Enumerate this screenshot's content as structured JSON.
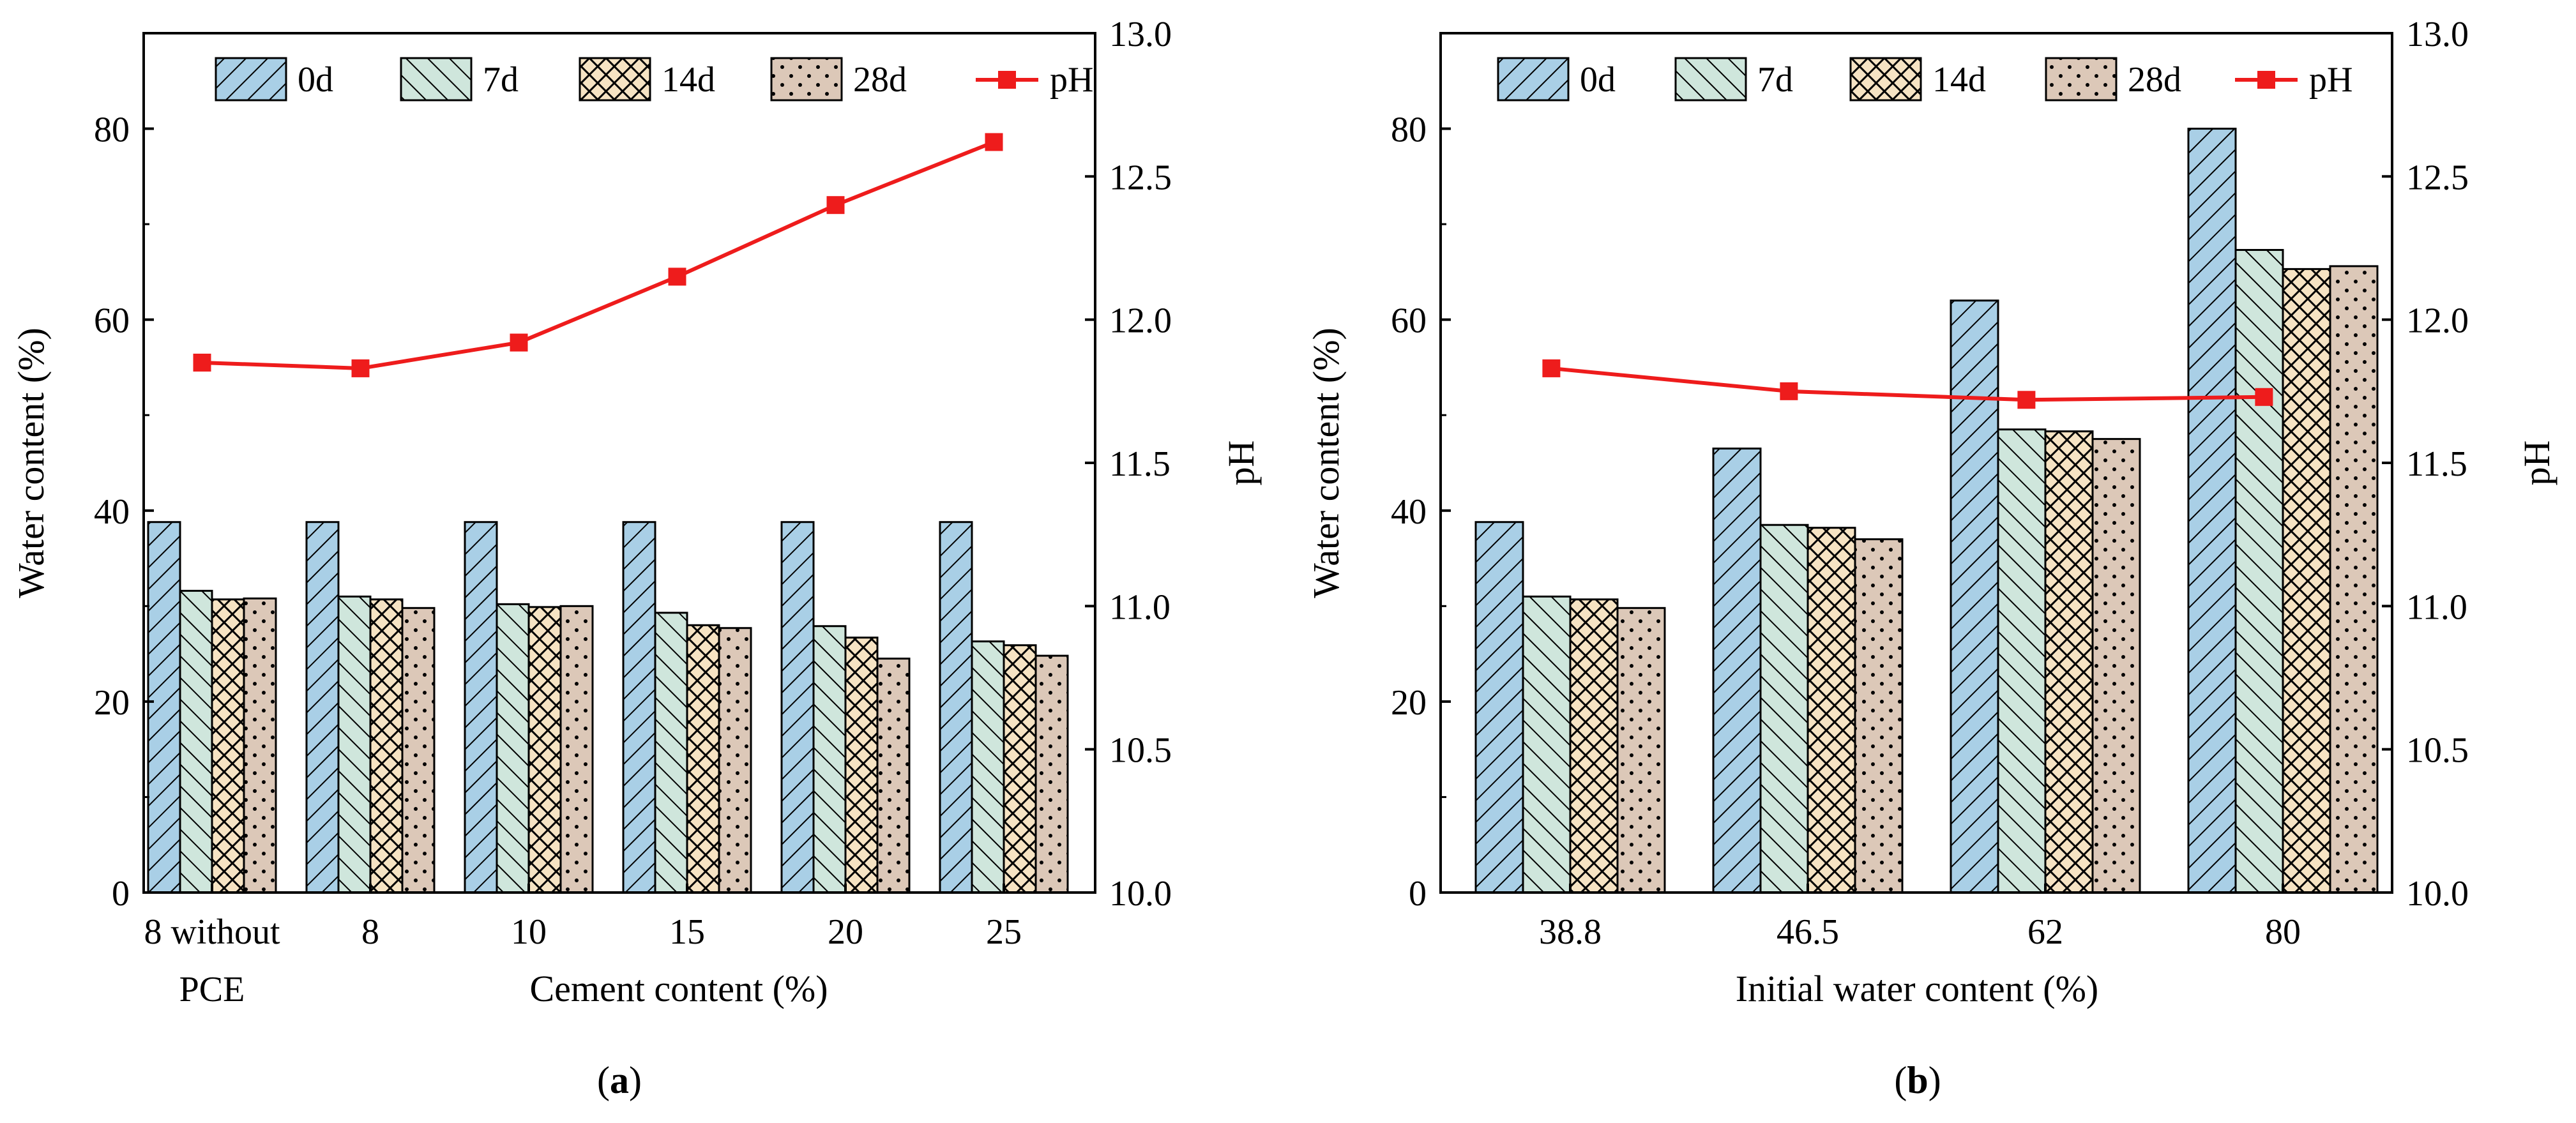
{
  "colors": {
    "bar_0d": "#a9cfe6",
    "bar_7d": "#cfe6dc",
    "bar_14d": "#f6e3c3",
    "bar_28d": "#dcc8b8",
    "ph_line": "#ee1c1c",
    "axis": "#000000"
  },
  "chart_data": [
    {
      "panel_label": "a",
      "type": "bar",
      "title": "",
      "xlabel": "Cement content (%)",
      "ylabel": "Water content (%)",
      "y2label": "pH",
      "categories": [
        {
          "name": "8 without",
          "sub": "PCE"
        },
        {
          "name": "8",
          "sub": ""
        },
        {
          "name": "10",
          "sub": ""
        },
        {
          "name": "15",
          "sub": ""
        },
        {
          "name": "20",
          "sub": ""
        },
        {
          "name": "25",
          "sub": ""
        }
      ],
      "ylim": [
        0,
        90
      ],
      "yticks": [
        0,
        20,
        40,
        60,
        80
      ],
      "y2lim": [
        10.0,
        13.0
      ],
      "y2ticks": [
        "10.0",
        "10.5",
        "11.0",
        "11.5",
        "12.0",
        "12.5",
        "13.0"
      ],
      "series": [
        {
          "name": "0d",
          "values": [
            38.8,
            38.8,
            38.8,
            38.8,
            38.8,
            38.8
          ]
        },
        {
          "name": "7d",
          "values": [
            31.6,
            31.0,
            30.2,
            29.3,
            27.9,
            26.3
          ]
        },
        {
          "name": "14d",
          "values": [
            30.7,
            30.7,
            29.9,
            28.0,
            26.7,
            25.9
          ]
        },
        {
          "name": "28d",
          "values": [
            30.8,
            29.8,
            30.0,
            27.7,
            24.5,
            24.8
          ]
        }
      ],
      "line": {
        "name": "pH",
        "values": [
          11.85,
          11.83,
          11.92,
          12.15,
          12.4,
          12.62
        ]
      },
      "legend": [
        "0d",
        "7d",
        "14d",
        "28d",
        "pH"
      ]
    },
    {
      "panel_label": "b",
      "type": "bar",
      "title": "",
      "xlabel": "Initial water content (%)",
      "ylabel": "Water content (%)",
      "y2label": "pH",
      "categories": [
        {
          "name": "38.8",
          "sub": ""
        },
        {
          "name": "46.5",
          "sub": ""
        },
        {
          "name": "62",
          "sub": ""
        },
        {
          "name": "80",
          "sub": ""
        }
      ],
      "ylim": [
        0,
        90
      ],
      "yticks": [
        0,
        20,
        40,
        60,
        80
      ],
      "y2lim": [
        10.0,
        13.0
      ],
      "y2ticks": [
        "10.0",
        "10.5",
        "11.0",
        "11.5",
        "12.0",
        "12.5",
        "13.0"
      ],
      "series": [
        {
          "name": "0d",
          "values": [
            38.8,
            46.5,
            62.0,
            80.0
          ]
        },
        {
          "name": "7d",
          "values": [
            31.0,
            38.5,
            48.5,
            67.3
          ]
        },
        {
          "name": "14d",
          "values": [
            30.7,
            38.2,
            48.3,
            65.3
          ]
        },
        {
          "name": "28d",
          "values": [
            29.8,
            37.0,
            47.5,
            65.6
          ]
        }
      ],
      "line": {
        "name": "pH",
        "values": [
          11.83,
          11.75,
          11.72,
          11.73
        ]
      },
      "legend": [
        "0d",
        "7d",
        "14d",
        "28d",
        "pH"
      ]
    }
  ]
}
